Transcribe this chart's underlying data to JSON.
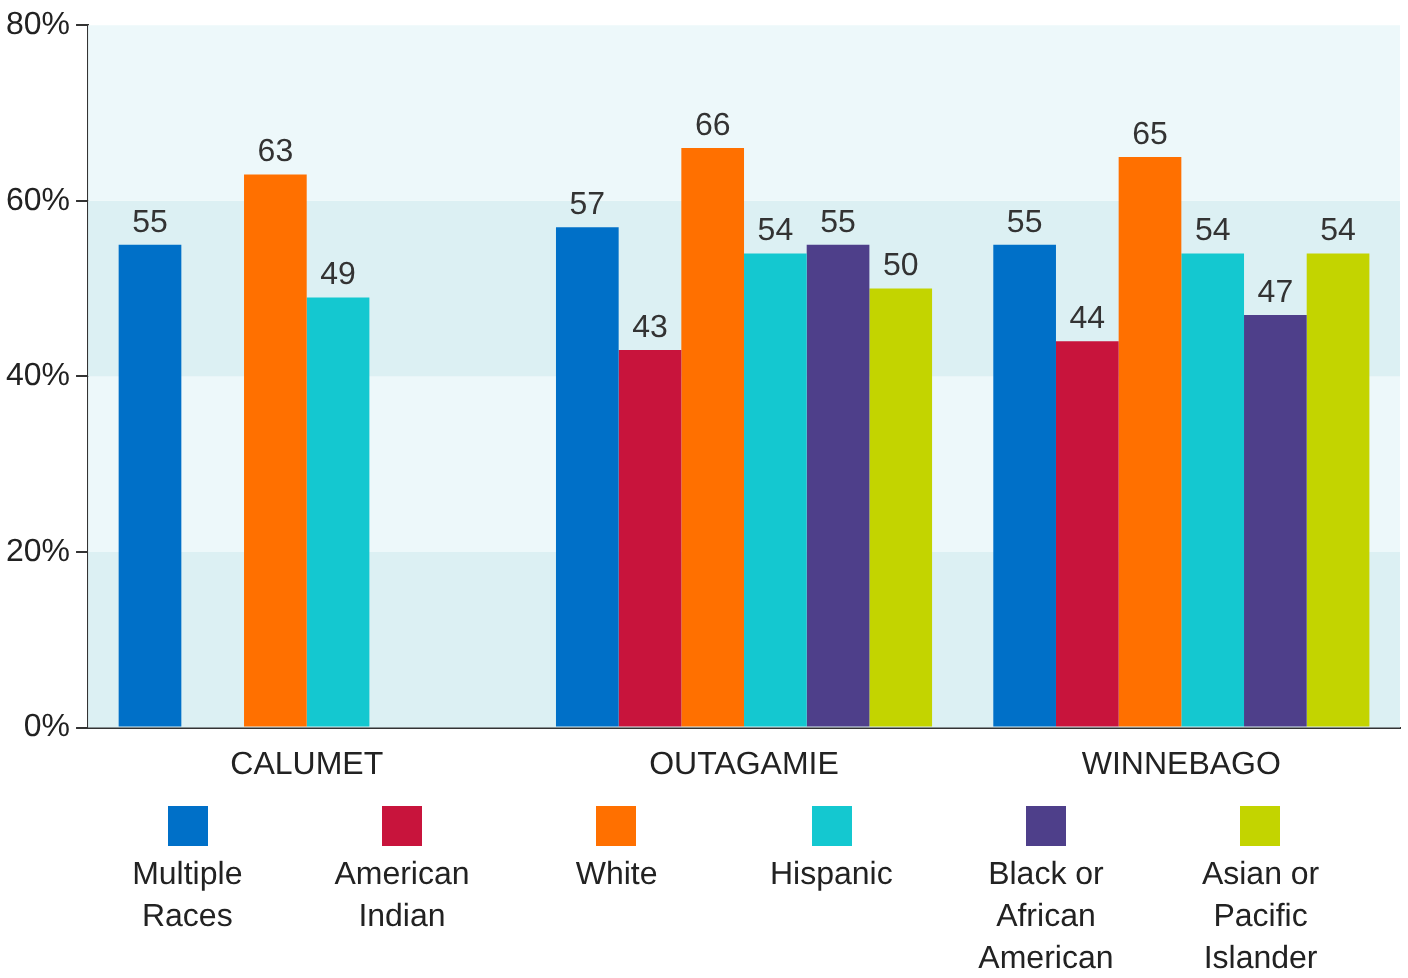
{
  "chart_data": {
    "type": "bar",
    "categories": [
      "CALUMET",
      "OUTAGAMIE",
      "WINNEBAGO"
    ],
    "series": [
      {
        "name": "Multiple Races",
        "color": "#0070c8",
        "values": [
          55,
          57,
          55
        ]
      },
      {
        "name": "American Indian",
        "color": "#c8143c",
        "values": [
          null,
          43,
          44
        ]
      },
      {
        "name": "White",
        "color": "#ff7000",
        "values": [
          63,
          66,
          65
        ]
      },
      {
        "name": "Hispanic",
        "color": "#14c8d0",
        "values": [
          49,
          54,
          54
        ]
      },
      {
        "name": "Black or African American",
        "color": "#4e3f8a",
        "values": [
          null,
          55,
          47
        ]
      },
      {
        "name": "Asian or Pacific Islander",
        "color": "#c3d400",
        "values": [
          null,
          50,
          54
        ]
      }
    ],
    "ylim": [
      0,
      80
    ],
    "yticks": [
      {
        "value": 0,
        "label": "0%"
      },
      {
        "value": 20,
        "label": "20%"
      },
      {
        "value": 40,
        "label": "40%"
      },
      {
        "value": 60,
        "label": "60%"
      },
      {
        "value": 80,
        "label": "80%"
      }
    ],
    "bands": [
      {
        "axis": "y",
        "from": 0,
        "to": 20,
        "color": "#dcf0f3"
      },
      {
        "axis": "y",
        "from": 20,
        "to": 40,
        "color": "#edf8fa"
      },
      {
        "axis": "y",
        "from": 40,
        "to": 60,
        "color": "#dcf0f3"
      },
      {
        "axis": "y",
        "from": 60,
        "to": 80,
        "color": "#edf8fa"
      }
    ],
    "data_labels": true,
    "grid": false,
    "legend": "bottom"
  }
}
